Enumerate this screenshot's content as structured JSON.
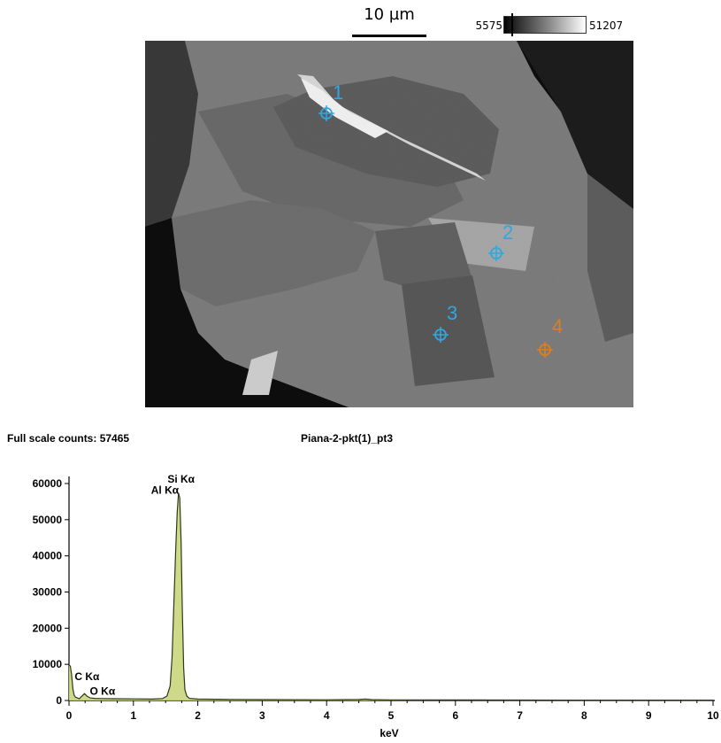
{
  "sem_image": {
    "scale_bar_label": "10 µm",
    "gray_min": "5575",
    "gray_max": "51207",
    "points": [
      {
        "label": "1",
        "color": "#2fa8e0"
      },
      {
        "label": "2",
        "color": "#2fa8e0"
      },
      {
        "label": "3",
        "color": "#2fa8e0"
      },
      {
        "label": "4",
        "color": "#e07f1a"
      }
    ]
  },
  "chart_data": {
    "type": "line",
    "title": "Piana-2-pkt(1)_pt3",
    "full_scale_label": "Full scale counts: 57465",
    "xlabel": "keV",
    "ylabel": "",
    "xlim": [
      0,
      10
    ],
    "ylim": [
      0,
      60000
    ],
    "x_ticks": [
      "0",
      "1",
      "2",
      "3",
      "4",
      "5",
      "6",
      "7",
      "8",
      "9",
      "10"
    ],
    "y_ticks": [
      "0",
      "10000",
      "20000",
      "30000",
      "40000",
      "50000",
      "60000"
    ],
    "y_tick_values": [
      0,
      10000,
      20000,
      30000,
      40000,
      50000,
      60000
    ],
    "grid": false,
    "line_color": "#2b3a1c",
    "fill_color": "#c9d67a",
    "series": [
      {
        "x": [
          0.0,
          0.02,
          0.04,
          0.06,
          0.08,
          0.1,
          0.13,
          0.16,
          0.2,
          0.24,
          0.28,
          0.33,
          0.4,
          0.5,
          0.7,
          1.0,
          1.3,
          1.45,
          1.52,
          1.57,
          1.6,
          1.63,
          1.66,
          1.68,
          1.7,
          1.72,
          1.74,
          1.76,
          1.78,
          1.8,
          1.83,
          1.87,
          2.0,
          2.5,
          3.0,
          4.0,
          4.5,
          4.6,
          4.7,
          5.0,
          6.0,
          7.0,
          8.0,
          9.0,
          10.0
        ],
        "y": [
          9800,
          9500,
          7200,
          3200,
          1500,
          900,
          700,
          500,
          1200,
          1900,
          1200,
          700,
          600,
          550,
          500,
          450,
          400,
          550,
          1200,
          4000,
          12000,
          28000,
          43000,
          52000,
          57400,
          56000,
          44000,
          25000,
          9000,
          3000,
          1200,
          600,
          400,
          300,
          250,
          200,
          260,
          380,
          250,
          180,
          150,
          130,
          110,
          100,
          90
        ]
      }
    ],
    "annotations": [
      {
        "text": "Si Kα",
        "x": 1.74,
        "y": 60200
      },
      {
        "text": "Al Kα",
        "x": 1.49,
        "y": 57200
      },
      {
        "text": "C Kα",
        "x": 0.28,
        "y": 5600
      },
      {
        "text": "O Kα",
        "x": 0.52,
        "y": 1600
      }
    ]
  }
}
